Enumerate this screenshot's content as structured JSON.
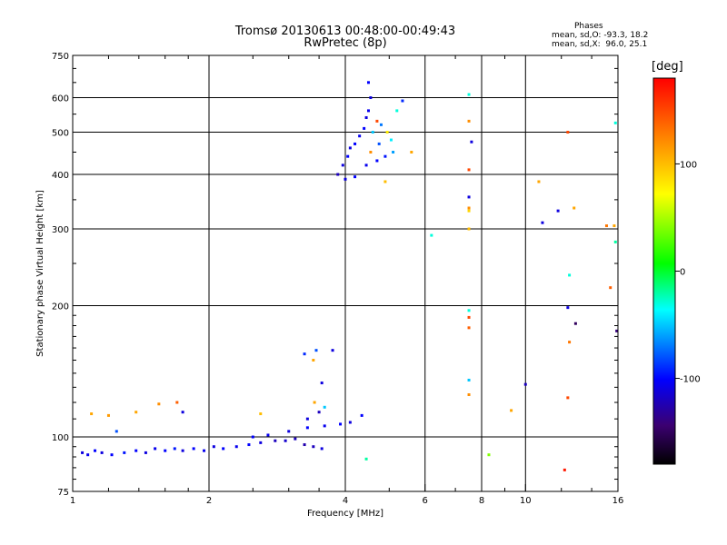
{
  "header": {
    "title_line1": "Tromsø 20130613 00:48:00-00:49:43",
    "title_line2": "RwPretec (8p)",
    "stats_title": "Phases",
    "stats_line1": "mean, sd,O: -93.3, 18.2",
    "stats_line2": "mean, sd,X:  96.0, 25.1"
  },
  "chart_data": {
    "type": "scatter",
    "title": "Tromsø 20130613 00:48:00-00:49:43",
    "subtitle": "RwPretec (8p)",
    "xlabel": "Frequency [MHz]",
    "ylabel": "Stationary phase Virtual Height [km]",
    "x_scale": "log",
    "y_scale": "log",
    "xlim": [
      1,
      16
    ],
    "ylim": [
      75,
      750
    ],
    "x_ticks": [
      1,
      2,
      4,
      6,
      8,
      10,
      16
    ],
    "x_tick_labels": [
      "1",
      "2",
      "4",
      "6",
      "8",
      "10",
      "16"
    ],
    "y_ticks": [
      75,
      100,
      200,
      300,
      400,
      500,
      600,
      750
    ],
    "y_tick_labels": [
      "75",
      "100",
      "200",
      "300",
      "400",
      "500",
      "600",
      "750"
    ],
    "grid": true,
    "colorbar": {
      "label": "[deg]",
      "range": [
        -180,
        180
      ],
      "tick_values": [
        100,
        0,
        -100
      ],
      "tick_labels": [
        "100",
        "0",
        "-100"
      ]
    },
    "points": [
      [
        1.05,
        92,
        -110
      ],
      [
        1.08,
        91,
        -105
      ],
      [
        1.12,
        93,
        -100
      ],
      [
        1.16,
        92,
        -110
      ],
      [
        1.22,
        91,
        -100
      ],
      [
        1.3,
        92,
        -95
      ],
      [
        1.38,
        93,
        -100
      ],
      [
        1.45,
        92,
        -110
      ],
      [
        1.52,
        94,
        -105
      ],
      [
        1.6,
        93,
        -100
      ],
      [
        1.68,
        94,
        -95
      ],
      [
        1.75,
        93,
        -110
      ],
      [
        1.85,
        94,
        -100
      ],
      [
        1.95,
        93,
        -105
      ],
      [
        2.05,
        95,
        -110
      ],
      [
        2.15,
        94,
        -100
      ],
      [
        2.3,
        95,
        -105
      ],
      [
        2.45,
        96,
        -100
      ],
      [
        2.6,
        97,
        -110
      ],
      [
        2.8,
        98,
        -120
      ],
      [
        2.95,
        98,
        -115
      ],
      [
        3.1,
        99,
        -120
      ],
      [
        3.25,
        96,
        -125
      ],
      [
        3.4,
        95,
        -120
      ],
      [
        3.55,
        94,
        -110
      ],
      [
        2.5,
        100,
        -100
      ],
      [
        2.7,
        101,
        -105
      ],
      [
        3.0,
        103,
        -110
      ],
      [
        3.3,
        105,
        -100
      ],
      [
        3.6,
        106,
        -105
      ],
      [
        3.9,
        107,
        -100
      ],
      [
        4.1,
        108,
        -110
      ],
      [
        4.35,
        112,
        -100
      ],
      [
        3.3,
        110,
        -110
      ],
      [
        3.5,
        114,
        -120
      ],
      [
        1.1,
        113,
        110
      ],
      [
        1.2,
        112,
        115
      ],
      [
        1.38,
        114,
        110
      ],
      [
        1.55,
        119,
        120
      ],
      [
        1.7,
        120,
        140
      ],
      [
        1.25,
        103,
        -80
      ],
      [
        1.75,
        114,
        -110
      ],
      [
        2.6,
        113,
        100
      ],
      [
        3.25,
        155,
        -90
      ],
      [
        3.45,
        158,
        -80
      ],
      [
        3.4,
        150,
        110
      ],
      [
        3.75,
        158,
        -110
      ],
      [
        3.55,
        133,
        -110
      ],
      [
        4.45,
        89,
        -20
      ],
      [
        3.42,
        120,
        110
      ],
      [
        3.6,
        117,
        -50
      ],
      [
        3.85,
        400,
        -120
      ],
      [
        3.95,
        420,
        -110
      ],
      [
        4.05,
        440,
        -100
      ],
      [
        4.1,
        460,
        -110
      ],
      [
        4.2,
        470,
        -100
      ],
      [
        4.3,
        490,
        -105
      ],
      [
        4.4,
        510,
        -100
      ],
      [
        4.45,
        540,
        -110
      ],
      [
        4.5,
        560,
        -105
      ],
      [
        4.55,
        600,
        -110
      ],
      [
        4.5,
        650,
        -100
      ],
      [
        4.6,
        500,
        -50
      ],
      [
        4.7,
        530,
        150
      ],
      [
        4.8,
        520,
        -70
      ],
      [
        4.95,
        500,
        80
      ],
      [
        5.05,
        480,
        -40
      ],
      [
        5.2,
        560,
        -30
      ],
      [
        5.35,
        590,
        -90
      ],
      [
        4.0,
        390,
        -110
      ],
      [
        4.2,
        395,
        -100
      ],
      [
        4.45,
        420,
        -105
      ],
      [
        4.7,
        430,
        -100
      ],
      [
        4.9,
        440,
        -95
      ],
      [
        5.1,
        450,
        -60
      ],
      [
        4.9,
        385,
        100
      ],
      [
        5.6,
        450,
        110
      ],
      [
        4.75,
        470,
        -80
      ],
      [
        4.55,
        450,
        120
      ],
      [
        6.2,
        290,
        -30
      ],
      [
        7.5,
        610,
        -30
      ],
      [
        7.5,
        530,
        120
      ],
      [
        7.6,
        475,
        -110
      ],
      [
        7.5,
        410,
        150
      ],
      [
        7.5,
        355,
        -110
      ],
      [
        7.5,
        335,
        120
      ],
      [
        7.5,
        330,
        90
      ],
      [
        7.5,
        300,
        100
      ],
      [
        7.5,
        195,
        -30
      ],
      [
        7.5,
        188,
        150
      ],
      [
        7.5,
        178,
        140
      ],
      [
        7.5,
        135,
        -50
      ],
      [
        7.5,
        125,
        120
      ],
      [
        8.3,
        91,
        40
      ],
      [
        9.3,
        115,
        110
      ],
      [
        10.0,
        132,
        -120
      ],
      [
        10.7,
        385,
        110
      ],
      [
        10.9,
        310,
        -110
      ],
      [
        11.8,
        330,
        -110
      ],
      [
        12.4,
        500,
        150
      ],
      [
        12.5,
        235,
        -30
      ],
      [
        12.4,
        198,
        -110
      ],
      [
        12.5,
        165,
        130
      ],
      [
        12.4,
        123,
        150
      ],
      [
        12.9,
        182,
        -150
      ],
      [
        12.2,
        84,
        170
      ],
      [
        12.8,
        335,
        110
      ],
      [
        15.1,
        305,
        130
      ],
      [
        15.7,
        305,
        110
      ],
      [
        15.4,
        220,
        140
      ],
      [
        15.8,
        280,
        -20
      ],
      [
        15.9,
        175,
        -140
      ],
      [
        15.8,
        525,
        -30
      ]
    ]
  }
}
